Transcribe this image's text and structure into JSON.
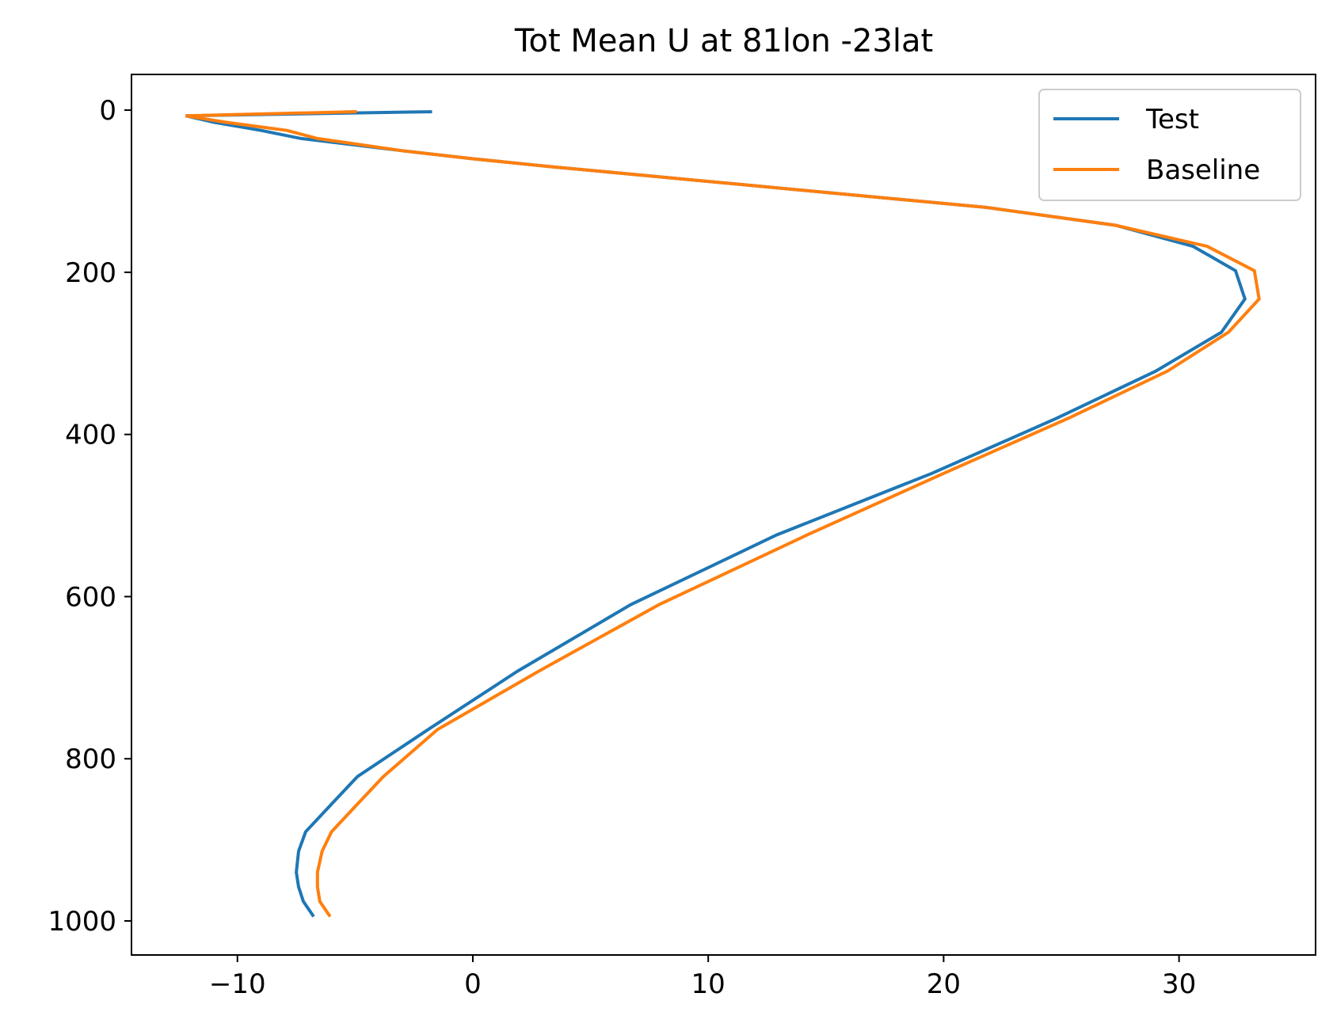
{
  "chart_data": {
    "type": "line",
    "title": "Tot Mean U at 81lon -23lat",
    "xlabel": "",
    "ylabel": "",
    "xlim": [
      -14.5,
      35.8
    ],
    "ylim": [
      1042,
      -44
    ],
    "y_inverted": true,
    "x_ticks": [
      {
        "value": -10,
        "label": "−10"
      },
      {
        "value": 0,
        "label": "0"
      },
      {
        "value": 10,
        "label": "10"
      },
      {
        "value": 20,
        "label": "20"
      },
      {
        "value": 30,
        "label": "30"
      }
    ],
    "y_ticks": [
      {
        "value": 0,
        "label": "0"
      },
      {
        "value": 200,
        "label": "200"
      },
      {
        "value": 400,
        "label": "400"
      },
      {
        "value": 600,
        "label": "600"
      },
      {
        "value": 800,
        "label": "800"
      },
      {
        "value": 1000,
        "label": "1000"
      }
    ],
    "grid": false,
    "legend": {
      "position": "top-right"
    },
    "series": [
      {
        "name": "Test",
        "color": "#1f77b4",
        "x": [
          -1.8,
          -12.2,
          -11.0,
          -9.0,
          -7.3,
          -3.0,
          0.0,
          3.4,
          7.1,
          11.5,
          16.3,
          21.8,
          27.3,
          30.6,
          32.4,
          32.8,
          31.8,
          29.0,
          24.8,
          19.5,
          12.9,
          6.7,
          1.9,
          -1.9,
          -4.9,
          -6.2,
          -7.1,
          -7.4,
          -7.5,
          -7.4,
          -7.2,
          -6.8
        ],
        "y": [
          2,
          7,
          15,
          25,
          35,
          50,
          60,
          70,
          80,
          92,
          105,
          120,
          142,
          168,
          198,
          233,
          274,
          322,
          380,
          448,
          524,
          610,
          692,
          764,
          822,
          862,
          890,
          914,
          940,
          958,
          976,
          993
        ]
      },
      {
        "name": "Baseline",
        "color": "#ff7f0e",
        "x": [
          -5.0,
          -12.2,
          -10.5,
          -7.9,
          -6.6,
          -3.0,
          0.0,
          3.4,
          7.1,
          11.5,
          16.3,
          21.8,
          27.3,
          31.2,
          33.2,
          33.4,
          32.1,
          29.5,
          25.3,
          20.0,
          14.2,
          7.9,
          2.8,
          -1.5,
          -3.8,
          -5.1,
          -6.0,
          -6.4,
          -6.6,
          -6.6,
          -6.5,
          -6.1
        ],
        "y": [
          2,
          7,
          15,
          25,
          35,
          50,
          60,
          70,
          80,
          92,
          105,
          120,
          142,
          168,
          198,
          233,
          274,
          322,
          380,
          448,
          524,
          610,
          692,
          764,
          822,
          862,
          890,
          914,
          940,
          958,
          976,
          993
        ]
      }
    ]
  }
}
